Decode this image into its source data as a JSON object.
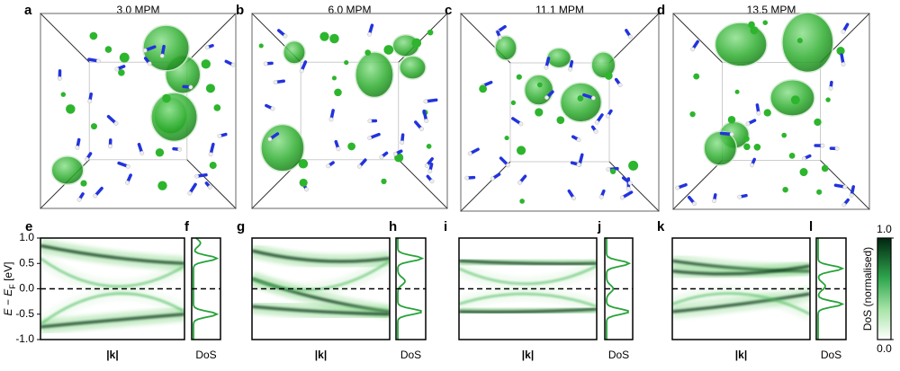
{
  "panels_top": [
    {
      "letter": "a",
      "title": "3.0 MPM"
    },
    {
      "letter": "b",
      "title": "6.0 MPM"
    },
    {
      "letter": "c",
      "title": "11.1 MPM"
    },
    {
      "letter": "d",
      "title": "13.5 MPM"
    }
  ],
  "panels_bottom": [
    {
      "band_letter": "e",
      "dos_letter": "f"
    },
    {
      "band_letter": "g",
      "dos_letter": "h"
    },
    {
      "band_letter": "i",
      "dos_letter": "j"
    },
    {
      "band_letter": "k",
      "dos_letter": "l"
    }
  ],
  "y_axis": {
    "label_main": "E − E",
    "label_sub": "F",
    "label_unit": " [eV]"
  },
  "ylim": [
    -1,
    1
  ],
  "yticks": [
    {
      "value": 1,
      "label": "1.0"
    },
    {
      "value": 0.5,
      "label": "0.5"
    },
    {
      "value": 0,
      "label": "0.0"
    },
    {
      "value": -0.5,
      "label": "-0.5"
    },
    {
      "value": -1,
      "label": "-1.0"
    }
  ],
  "x_label_band": "|k|",
  "x_label_dos": "DoS",
  "colorbar": {
    "label": "DoS (normalised)",
    "ticks": [
      {
        "value": 1,
        "label": "1.0"
      },
      {
        "value": 0,
        "label": "0.0"
      }
    ]
  }
}
